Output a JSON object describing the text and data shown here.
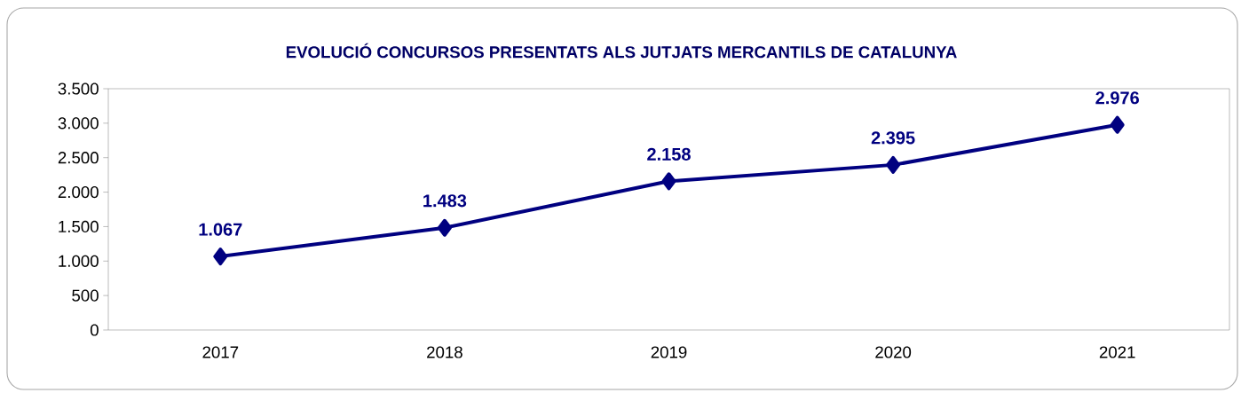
{
  "chart_data": {
    "type": "line",
    "title": "EVOLUCIÓ CONCURSOS PRESENTATS ALS JUTJATS MERCANTILS DE CATALUNYA",
    "categories": [
      "2017",
      "2018",
      "2019",
      "2020",
      "2021"
    ],
    "series": [
      {
        "color": "#000080",
        "values": [
          1067,
          1483,
          2158,
          2395,
          2976
        ],
        "value_labels": [
          "1.067",
          "1.483",
          "2.158",
          "2.395",
          "2.976"
        ]
      }
    ],
    "ylim": [
      0,
      3500
    ],
    "yticks": [
      {
        "value": 0,
        "label": "0"
      },
      {
        "value": 500,
        "label": "500"
      },
      {
        "value": 1000,
        "label": "1.000"
      },
      {
        "value": 1500,
        "label": "1.500"
      },
      {
        "value": 2000,
        "label": "2.000"
      },
      {
        "value": 2500,
        "label": "2.500"
      },
      {
        "value": 3000,
        "label": "3.000"
      },
      {
        "value": 3500,
        "label": "3.500"
      }
    ],
    "marker": "diamond",
    "line_style": "solid",
    "grid": false
  }
}
